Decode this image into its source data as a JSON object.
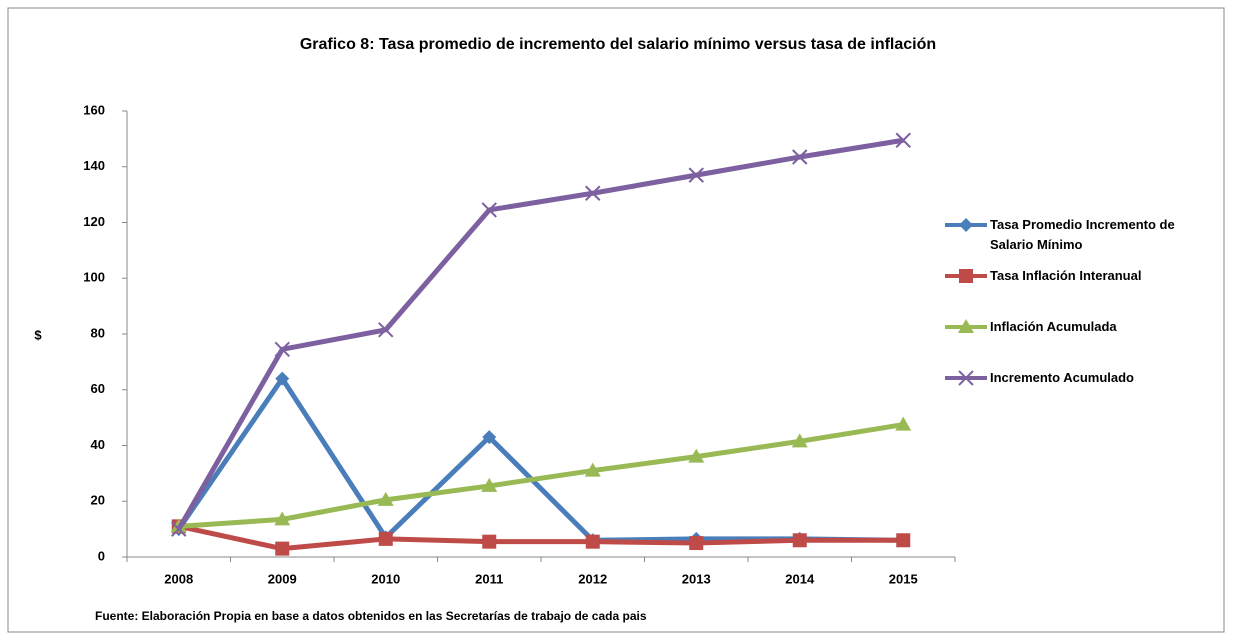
{
  "chart_data": {
    "type": "line",
    "title": "Grafico 8:  Tasa promedio de incremento del salario mínimo versus  tasa de inflación",
    "ylabel": "$",
    "note": "Fuente: Elaboración Propia en base a datos obtenidos en las Secretarías de trabajo de cada pais",
    "categories": [
      "2008",
      "2009",
      "2010",
      "2011",
      "2012",
      "2013",
      "2014",
      "2015"
    ],
    "ylim": [
      0,
      160
    ],
    "yticks": [
      0,
      20,
      40,
      60,
      80,
      100,
      120,
      140,
      160
    ],
    "legend": "right",
    "series": [
      {
        "name": "Tasa Promedio Incremento de Salario Mínimo",
        "color": "#4a7ebb",
        "marker": "diamond",
        "values": [
          10,
          64,
          7,
          43,
          6,
          6.5,
          6.5,
          6
        ]
      },
      {
        "name": "Tasa  Inflación  Interanual",
        "color": "#be4b48",
        "marker": "square",
        "values": [
          11,
          3,
          6.5,
          5.5,
          5.5,
          5,
          6,
          6
        ]
      },
      {
        "name": "Inflación Acumulada",
        "color": "#98b954",
        "marker": "triangle",
        "values": [
          11,
          13.5,
          20.5,
          25.5,
          31,
          36,
          41.5,
          47.5
        ]
      },
      {
        "name": "Incremento Acumulado",
        "color": "#7d60a0",
        "marker": "x",
        "values": [
          10,
          74.5,
          81.5,
          124.5,
          130.5,
          137,
          143.5,
          149.5
        ]
      }
    ]
  }
}
